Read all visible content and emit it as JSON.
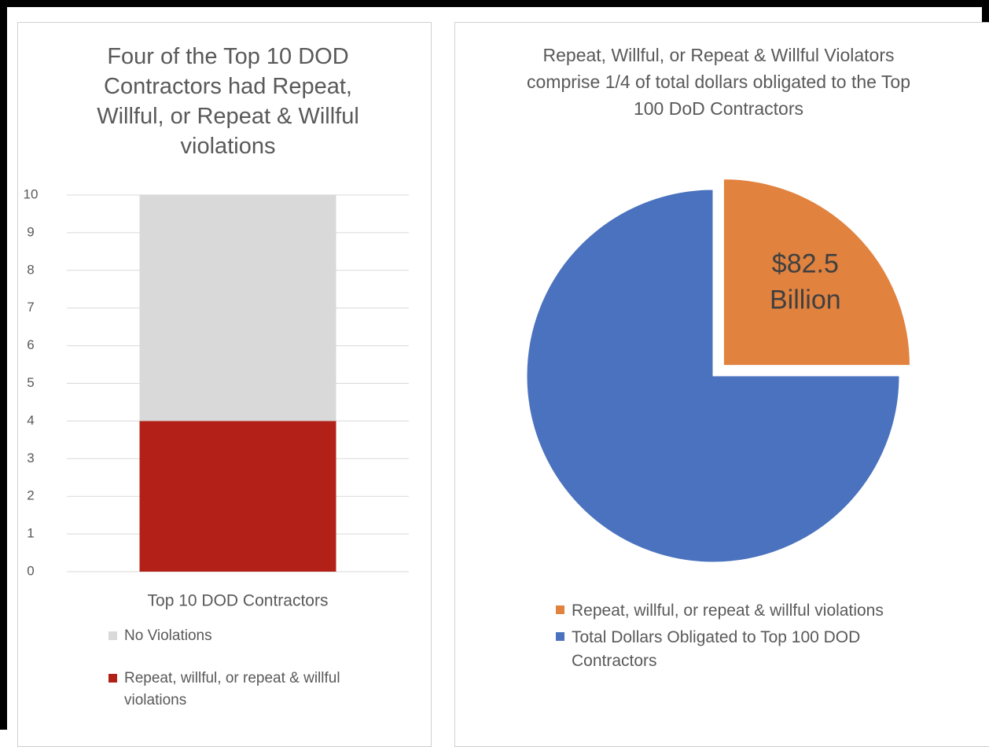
{
  "chart_data": [
    {
      "type": "bar",
      "stacked": true,
      "title": "Four of the Top 10 DOD Contractors had Repeat, Willful, or Repeat & Willful violations",
      "categories": [
        "Top 10 DOD Contractors"
      ],
      "series": [
        {
          "name": "Repeat, willful, or repeat & willful violations",
          "color": "#b22018",
          "values": [
            4
          ]
        },
        {
          "name": "No Violations",
          "color": "#d9d9d9",
          "values": [
            6
          ]
        }
      ],
      "ylim": [
        0,
        10
      ],
      "yticks": [
        0,
        1,
        2,
        3,
        4,
        5,
        6,
        7,
        8,
        9,
        10
      ],
      "grid": true,
      "legend": "bottom"
    },
    {
      "type": "pie",
      "title": "Repeat, Willful, or Repeat & Willful Violators comprise 1/4 of total dollars obligated to the Top 100 DoD Contractors",
      "categories": [
        "Repeat, willful, or repeat & willful violations",
        "Total Dollars Obligated to Top 100 DOD Contractors"
      ],
      "values": [
        82.5,
        247.5
      ],
      "value_labels": [
        "$82.5 Billion",
        null
      ],
      "colors": [
        "#e1823f",
        "#4a72be"
      ],
      "exploded": [
        true,
        false
      ],
      "legend": "bottom"
    }
  ]
}
